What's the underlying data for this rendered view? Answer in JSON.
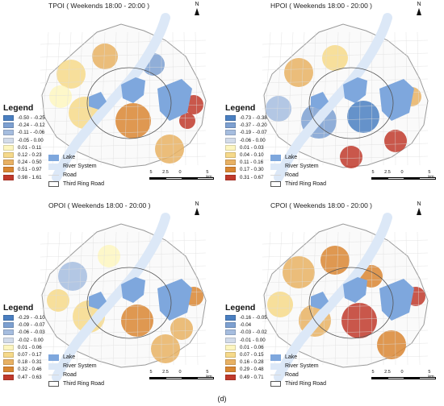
{
  "panels": [
    {
      "title": "TPOI ( Weekends 18:00 - 20:00 )",
      "north_label": "N",
      "legend_title": "Legend",
      "classes": [
        {
          "label": "-0.50 - -0.25",
          "color": "#4a7fc1"
        },
        {
          "label": "-0.24 - -0.12",
          "color": "#7da0d1"
        },
        {
          "label": "-0.11 - -0.06",
          "color": "#a6bddf"
        },
        {
          "label": "-0.05 - 0.00",
          "color": "#d3dcea"
        },
        {
          "label": "0.01 - 0.11",
          "color": "#fdf6c0"
        },
        {
          "label": "0.12 - 0.23",
          "color": "#f6d98a"
        },
        {
          "label": "0.24 - 0.50",
          "color": "#e8b163"
        },
        {
          "label": "0.51 - 0.97",
          "color": "#d98632"
        },
        {
          "label": "0.98 - 1.61",
          "color": "#c0392b"
        }
      ],
      "layers": {
        "lake": "Lake",
        "river": "River System",
        "road": "Road",
        "ring": "Third Ring Road"
      },
      "scale_ticks": [
        "5",
        "2.5",
        "0",
        "5 km"
      ]
    },
    {
      "title": "HPOI ( Weekends 18:00 - 20:00 )",
      "north_label": "N",
      "legend_title": "Legend",
      "classes": [
        {
          "label": "-0.73 - -0.38",
          "color": "#4a7fc1"
        },
        {
          "label": "-0.37 - -0.20",
          "color": "#7da0d1"
        },
        {
          "label": "-0.19 - -0.07",
          "color": "#a6bddf"
        },
        {
          "label": "-0.06 - 0.00",
          "color": "#d3dcea"
        },
        {
          "label": "0.01 - 0.03",
          "color": "#fdf6c0"
        },
        {
          "label": "0.04 - 0.10",
          "color": "#f6d98a"
        },
        {
          "label": "0.11 - 0.16",
          "color": "#e8b163"
        },
        {
          "label": "0.17 - 0.30",
          "color": "#d98632"
        },
        {
          "label": "0.31 - 0.67",
          "color": "#c0392b"
        }
      ],
      "layers": {
        "lake": "Lake",
        "river": "River System",
        "road": "Road",
        "ring": "Third Ring Road"
      },
      "scale_ticks": [
        "5",
        "2.5",
        "0",
        "5 km"
      ]
    },
    {
      "title": "OPOI ( Weekends 18:00 - 20:00 )",
      "north_label": "N",
      "legend_title": "Legend",
      "classes": [
        {
          "label": "-0.29 - -0.10",
          "color": "#4a7fc1"
        },
        {
          "label": "-0.09 - -0.07",
          "color": "#7da0d1"
        },
        {
          "label": "-0.06 - -0.03",
          "color": "#a6bddf"
        },
        {
          "label": "-0.02 - 0.00",
          "color": "#d3dcea"
        },
        {
          "label": "0.01 - 0.06",
          "color": "#fdf6c0"
        },
        {
          "label": "0.07 - 0.17",
          "color": "#f6d98a"
        },
        {
          "label": "0.18 - 0.31",
          "color": "#e8b163"
        },
        {
          "label": "0.32 - 0.46",
          "color": "#d98632"
        },
        {
          "label": "0.47 - 0.63",
          "color": "#c0392b"
        }
      ],
      "layers": {
        "lake": "Lake",
        "river": "River System",
        "road": "Road",
        "ring": "Third Ring Road"
      },
      "scale_ticks": [
        "5",
        "2.5",
        "0",
        "5 km"
      ]
    },
    {
      "title": "CPOI ( Weekends 18:00 - 20:00 )",
      "north_label": "N",
      "legend_title": "Legend",
      "classes": [
        {
          "label": "-0.16 - -0.05",
          "color": "#4a7fc1"
        },
        {
          "label": "-0.04",
          "color": "#7da0d1"
        },
        {
          "label": "-0.03 - -0.02",
          "color": "#a6bddf"
        },
        {
          "label": "-0.01 - 0.00",
          "color": "#d3dcea"
        },
        {
          "label": "0.01 - 0.06",
          "color": "#fdf6c0"
        },
        {
          "label": "0.07 - 0.15",
          "color": "#f6d98a"
        },
        {
          "label": "0.16 - 0.28",
          "color": "#e8b163"
        },
        {
          "label": "0.29 - 0.48",
          "color": "#d98632"
        },
        {
          "label": "0.49 - 0.71",
          "color": "#c0392b"
        }
      ],
      "layers": {
        "lake": "Lake",
        "river": "River System",
        "road": "Road",
        "ring": "Third Ring Road"
      },
      "scale_ticks": [
        "5",
        "2.5",
        "0",
        "5 km"
      ]
    }
  ],
  "caption": "(d)"
}
